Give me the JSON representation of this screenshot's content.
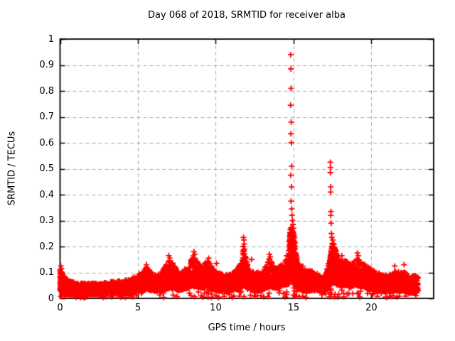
{
  "chart_data": {
    "type": "scatter",
    "title": "Day 068 of 2018, SRMTID for receiver alba",
    "xlabel": "GPS time / hours",
    "ylabel": "SRMTID / TECUs",
    "xlim": [
      0,
      24
    ],
    "ylim": [
      0,
      1
    ],
    "xticks": [
      0,
      5,
      10,
      15,
      20
    ],
    "xtick_labels": [
      "0",
      "5",
      "10",
      "15",
      "20"
    ],
    "yticks": [
      0,
      0.1,
      0.2,
      0.3,
      0.4,
      0.5,
      0.6,
      0.7,
      0.8,
      0.9,
      1
    ],
    "ytick_labels": [
      "0",
      "0.1",
      "0.2",
      "0.3",
      "0.4",
      "0.5",
      "0.6",
      "0.7",
      "0.8",
      "0.9",
      "1"
    ],
    "grid": true,
    "legend": "none",
    "marker": "plus",
    "marker_size": 8,
    "marker_color": "#ff0000",
    "axis_color": "#000000",
    "grid_color": "#a8a8a8",
    "background": "#ffffff",
    "t_end": 23.0,
    "sample_step": 0.004,
    "seed": 7,
    "band_description": "piecewise [t_hours, value_low, value_high] envelope of the dense scatter band",
    "band": [
      [
        0.0,
        0.03,
        0.115
      ],
      [
        0.2,
        0.02,
        0.09
      ],
      [
        0.5,
        0.015,
        0.07
      ],
      [
        1.0,
        0.015,
        0.06
      ],
      [
        1.5,
        0.015,
        0.058
      ],
      [
        2.0,
        0.015,
        0.06
      ],
      [
        2.5,
        0.015,
        0.058
      ],
      [
        3.0,
        0.018,
        0.062
      ],
      [
        3.5,
        0.02,
        0.065
      ],
      [
        4.0,
        0.02,
        0.068
      ],
      [
        4.5,
        0.022,
        0.075
      ],
      [
        5.0,
        0.028,
        0.09
      ],
      [
        5.35,
        0.03,
        0.105
      ],
      [
        5.6,
        0.035,
        0.125
      ],
      [
        5.9,
        0.03,
        0.1
      ],
      [
        6.2,
        0.028,
        0.09
      ],
      [
        6.5,
        0.03,
        0.1
      ],
      [
        6.8,
        0.035,
        0.13
      ],
      [
        7.05,
        0.04,
        0.155
      ],
      [
        7.3,
        0.04,
        0.13
      ],
      [
        7.6,
        0.03,
        0.1
      ],
      [
        7.9,
        0.035,
        0.11
      ],
      [
        8.2,
        0.04,
        0.125
      ],
      [
        8.55,
        0.045,
        0.165
      ],
      [
        8.8,
        0.045,
        0.145
      ],
      [
        9.1,
        0.04,
        0.12
      ],
      [
        9.5,
        0.04,
        0.15
      ],
      [
        9.8,
        0.035,
        0.12
      ],
      [
        10.1,
        0.03,
        0.105
      ],
      [
        10.5,
        0.025,
        0.09
      ],
      [
        11.0,
        0.03,
        0.095
      ],
      [
        11.4,
        0.035,
        0.115
      ],
      [
        11.65,
        0.04,
        0.14
      ],
      [
        11.8,
        0.05,
        0.2
      ],
      [
        11.95,
        0.045,
        0.15
      ],
      [
        12.2,
        0.035,
        0.11
      ],
      [
        12.6,
        0.03,
        0.1
      ],
      [
        13.0,
        0.035,
        0.105
      ],
      [
        13.45,
        0.045,
        0.155
      ],
      [
        13.8,
        0.04,
        0.12
      ],
      [
        14.1,
        0.045,
        0.125
      ],
      [
        14.4,
        0.05,
        0.14
      ],
      [
        14.65,
        0.055,
        0.16
      ],
      [
        14.8,
        0.08,
        0.28
      ],
      [
        14.95,
        0.075,
        0.26
      ],
      [
        15.1,
        0.05,
        0.19
      ],
      [
        15.3,
        0.035,
        0.14
      ],
      [
        15.6,
        0.03,
        0.125
      ],
      [
        15.9,
        0.028,
        0.11
      ],
      [
        16.2,
        0.03,
        0.105
      ],
      [
        16.6,
        0.03,
        0.095
      ],
      [
        16.95,
        0.025,
        0.075
      ],
      [
        17.15,
        0.04,
        0.115
      ],
      [
        17.35,
        0.05,
        0.16
      ],
      [
        17.5,
        0.06,
        0.22
      ],
      [
        17.65,
        0.06,
        0.2
      ],
      [
        17.85,
        0.05,
        0.155
      ],
      [
        18.1,
        0.05,
        0.15
      ],
      [
        18.4,
        0.05,
        0.145
      ],
      [
        18.7,
        0.045,
        0.13
      ],
      [
        18.95,
        0.05,
        0.15
      ],
      [
        19.15,
        0.05,
        0.16
      ],
      [
        19.4,
        0.045,
        0.14
      ],
      [
        19.7,
        0.04,
        0.125
      ],
      [
        20.0,
        0.035,
        0.115
      ],
      [
        20.4,
        0.03,
        0.1
      ],
      [
        20.8,
        0.025,
        0.09
      ],
      [
        21.2,
        0.028,
        0.092
      ],
      [
        21.55,
        0.03,
        0.105
      ],
      [
        21.9,
        0.028,
        0.1
      ],
      [
        22.15,
        0.03,
        0.105
      ],
      [
        22.45,
        0.02,
        0.08
      ],
      [
        22.75,
        0.022,
        0.09
      ],
      [
        23.0,
        0.03,
        0.085
      ]
    ],
    "dense_regions": [
      [
        14.72,
        15.2,
        4
      ],
      [
        17.32,
        17.8,
        3
      ],
      [
        11.7,
        11.95,
        2
      ],
      [
        0.0,
        0.35,
        2
      ]
    ],
    "outliers": [
      [
        14.82,
        0.94
      ],
      [
        14.83,
        0.885
      ],
      [
        14.84,
        0.81
      ],
      [
        14.81,
        0.745
      ],
      [
        14.85,
        0.68
      ],
      [
        14.83,
        0.635
      ],
      [
        14.86,
        0.6
      ],
      [
        14.88,
        0.51
      ],
      [
        14.82,
        0.475
      ],
      [
        14.87,
        0.43
      ],
      [
        14.84,
        0.375
      ],
      [
        14.88,
        0.345
      ],
      [
        14.9,
        0.32
      ],
      [
        14.93,
        0.3
      ],
      [
        14.96,
        0.285
      ],
      [
        15.0,
        0.27
      ],
      [
        14.98,
        0.255
      ],
      [
        15.03,
        0.245
      ],
      [
        15.06,
        0.235
      ],
      [
        14.79,
        0.22
      ],
      [
        15.1,
        0.215
      ],
      [
        14.76,
        0.19
      ],
      [
        17.36,
        0.525
      ],
      [
        17.37,
        0.505
      ],
      [
        17.36,
        0.485
      ],
      [
        17.39,
        0.43
      ],
      [
        17.38,
        0.41
      ],
      [
        17.4,
        0.335
      ],
      [
        17.39,
        0.32
      ],
      [
        17.41,
        0.29
      ],
      [
        17.43,
        0.25
      ],
      [
        17.46,
        0.235
      ],
      [
        17.52,
        0.225
      ],
      [
        17.57,
        0.21
      ],
      [
        17.49,
        0.195
      ],
      [
        11.78,
        0.235
      ],
      [
        11.81,
        0.225
      ],
      [
        11.83,
        0.21
      ],
      [
        11.76,
        0.2
      ],
      [
        11.85,
        0.19
      ],
      [
        0.05,
        0.125
      ],
      [
        0.09,
        0.115
      ],
      [
        5.55,
        0.13
      ],
      [
        6.98,
        0.165
      ],
      [
        7.05,
        0.155
      ],
      [
        8.6,
        0.18
      ],
      [
        8.65,
        0.17
      ],
      [
        9.55,
        0.155
      ],
      [
        10.05,
        0.135
      ],
      [
        12.3,
        0.15
      ],
      [
        13.45,
        0.17
      ],
      [
        13.5,
        0.16
      ],
      [
        14.55,
        0.165
      ],
      [
        18.1,
        0.165
      ],
      [
        19.1,
        0.175
      ],
      [
        19.15,
        0.165
      ],
      [
        21.5,
        0.125
      ],
      [
        22.1,
        0.13
      ]
    ]
  }
}
